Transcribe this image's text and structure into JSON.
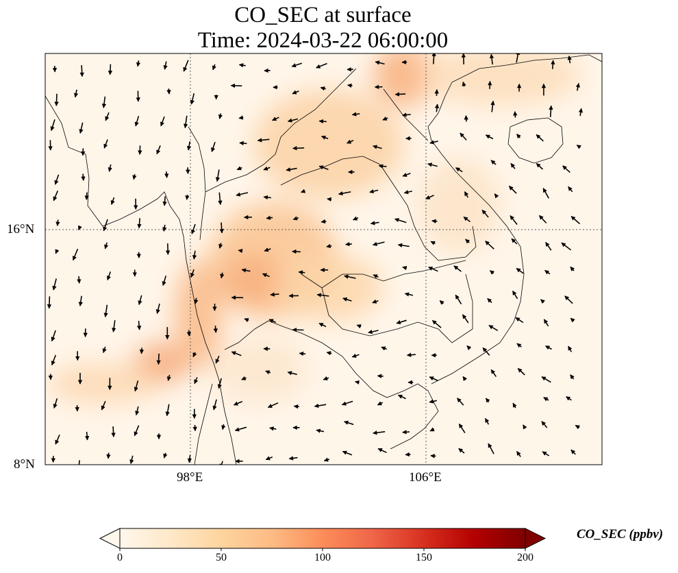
{
  "title": {
    "line1": "CO_SEC at surface",
    "line2": "Time: 2024-03-22 06:00:00"
  },
  "map": {
    "region": "Indochina / mainland Southeast Asia",
    "lon_labels": [
      "98°E",
      "106°E"
    ],
    "lat_labels": [
      "16°N",
      "8°N"
    ],
    "gridlines": "dotted",
    "field": "CO_SEC concentration (shaded)",
    "vectors": "wind arrows"
  },
  "colorbar": {
    "label": "CO_SEC (ppbv)",
    "ticks": [
      "0",
      "50",
      "100",
      "150",
      "200"
    ],
    "range": [
      0,
      200
    ],
    "colormap": "OrRd",
    "extend": "both",
    "colors": [
      "#fff7ec",
      "#fee8c8",
      "#fdd49e",
      "#fdbb84",
      "#fc8d59",
      "#ef6548",
      "#d7301f",
      "#b30000",
      "#7f0000"
    ]
  }
}
